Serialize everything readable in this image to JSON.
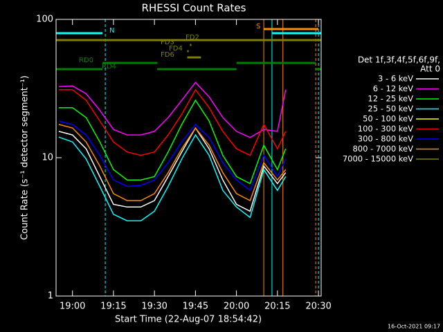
{
  "chart_data": {
    "type": "line",
    "title": "RHESSI Count Rates",
    "xlabel": "Start Time (22-Aug-07 18:54:42)",
    "ylabel": "Count Rate (s⁻¹ detector segment⁻¹)",
    "footer": "16-Oct-2021 09:17",
    "legend_title": [
      "Det 1f,3f,4f,5f,6f,9f,",
      "Att 0"
    ],
    "log_y": true,
    "xlim": [
      "18:54",
      "20:31"
    ],
    "xticks": [
      "19:00",
      "19:15",
      "19:30",
      "19:45",
      "20:00",
      "20:15",
      "20:30"
    ],
    "ylim": [
      1,
      100
    ],
    "yticks": [
      1,
      10,
      100
    ],
    "x": [
      "18:55",
      "19:00",
      "19:05",
      "19:10",
      "19:15",
      "19:20",
      "19:25",
      "19:30",
      "19:35",
      "19:40",
      "19:45",
      "19:50",
      "19:55",
      "20:00",
      "20:05",
      "20:10",
      "20:15",
      "20:18"
    ],
    "series": [
      {
        "name": "3 - 6 keV",
        "color": "#ffffff",
        "values": [
          15.5,
          14.6,
          11.6,
          7.3,
          4.6,
          4.4,
          4.4,
          4.9,
          7.3,
          11,
          16.4,
          11.6,
          6.9,
          4.6,
          4.1,
          8.7,
          6.5,
          7.8
        ]
      },
      {
        "name": "6 - 12 keV",
        "color": "#ff00ff",
        "values": [
          32.7,
          33,
          29,
          22,
          16,
          14.6,
          14.6,
          15.5,
          19.5,
          26,
          35,
          27.5,
          19.5,
          15.5,
          14,
          16,
          15.5,
          31
        ]
      },
      {
        "name": "12 - 25 keV",
        "color": "#00ff00",
        "values": [
          23,
          23,
          19.5,
          13,
          8.2,
          6.9,
          6.9,
          7.3,
          11,
          17.4,
          26,
          18.4,
          10.4,
          7.3,
          6.5,
          12.3,
          8.2,
          11.6
        ]
      },
      {
        "name": "25 - 50 keV",
        "color": "#00ffff",
        "values": [
          14.1,
          13,
          9.8,
          6.2,
          3.9,
          3.5,
          3.5,
          4.1,
          6.2,
          9.8,
          14.6,
          10.4,
          5.8,
          4.4,
          3.7,
          8.2,
          5.8,
          7.3
        ]
      },
      {
        "name": "50 - 100 keV",
        "color": "#ffff00",
        "values": [
          null,
          null,
          null,
          null,
          null,
          null,
          null,
          null,
          null,
          null,
          null,
          null,
          null,
          null,
          null,
          null,
          null,
          null
        ]
      },
      {
        "name": "100 - 300 keV",
        "color": "#ff0000",
        "values": [
          31,
          31,
          26,
          18.4,
          13,
          11,
          10.4,
          11,
          14.6,
          20.6,
          31,
          23,
          15.5,
          11.6,
          10.4,
          17.4,
          11.6,
          15.5
        ]
      },
      {
        "name": "300 - 800 keV",
        "color": "#0000ff",
        "values": [
          18.4,
          17.4,
          14.6,
          10.4,
          6.9,
          6.2,
          6.3,
          6.9,
          9.2,
          13,
          17.4,
          14,
          9.2,
          6.9,
          5.8,
          10.4,
          7.3,
          9.8
        ]
      },
      {
        "name": "800 - 7000 keV",
        "color": "#ff8c00",
        "values": [
          17.4,
          16.4,
          13,
          8.7,
          5.5,
          4.9,
          4.9,
          5.5,
          7.8,
          11.6,
          16.4,
          12.3,
          7.8,
          5.5,
          4.9,
          9.2,
          6.9,
          8.2
        ]
      },
      {
        "name": "7000 - 15000 keV",
        "color": "#808000",
        "values": [
          null,
          null,
          null,
          null,
          null,
          null,
          null,
          null,
          null,
          null,
          null,
          null,
          null,
          null,
          null,
          null,
          null,
          null
        ]
      }
    ],
    "flags": [
      {
        "name": "S",
        "color": "#ff8c00",
        "intervals": [
          [
            "20:10",
            "20:30"
          ]
        ]
      },
      {
        "name": "N",
        "color": "#00ffff",
        "intervals": [
          [
            "18:54",
            "19:11"
          ],
          [
            "20:13",
            "20:31"
          ]
        ]
      },
      {
        "name": "FD2",
        "color": "#808000",
        "intervals": [
          [
            "18:54",
            "20:31"
          ]
        ]
      },
      {
        "name": "FD3",
        "color": "#808000",
        "intervals": [
          [
            "19:43",
            "19:43"
          ]
        ]
      },
      {
        "name": "FD4",
        "color": "#808000",
        "intervals": [
          [
            "19:42",
            "19:42"
          ]
        ]
      },
      {
        "name": "FD6",
        "color": "#808000",
        "intervals": [
          [
            "19:42",
            "19:47"
          ]
        ]
      },
      {
        "name": "RD0",
        "color": "#008000",
        "intervals": [
          [
            "19:11",
            "19:31"
          ],
          [
            "20:00",
            "20:29"
          ]
        ]
      },
      {
        "name": "RD4",
        "color": "#008000",
        "intervals": [
          [
            "18:54",
            "19:11"
          ],
          [
            "19:31",
            "20:00"
          ],
          [
            "20:29",
            "20:31"
          ]
        ]
      }
    ],
    "vertical_lines": [
      {
        "time": "18:54",
        "color": "#00ffff",
        "dashed": false
      },
      {
        "time": "19:12",
        "color": "#00ffff",
        "dashed": true
      },
      {
        "time": "20:10",
        "color": "#ff8c00",
        "dashed": false
      },
      {
        "time": "20:13",
        "color": "#00ffff",
        "dashed": false
      },
      {
        "time": "20:17",
        "color": "#ff8c00",
        "dashed": false
      },
      {
        "time": "20:29",
        "color": "#ff8c00",
        "dashed": true
      },
      {
        "time": "20:30",
        "color": "#00ffff",
        "dashed": true
      }
    ]
  }
}
